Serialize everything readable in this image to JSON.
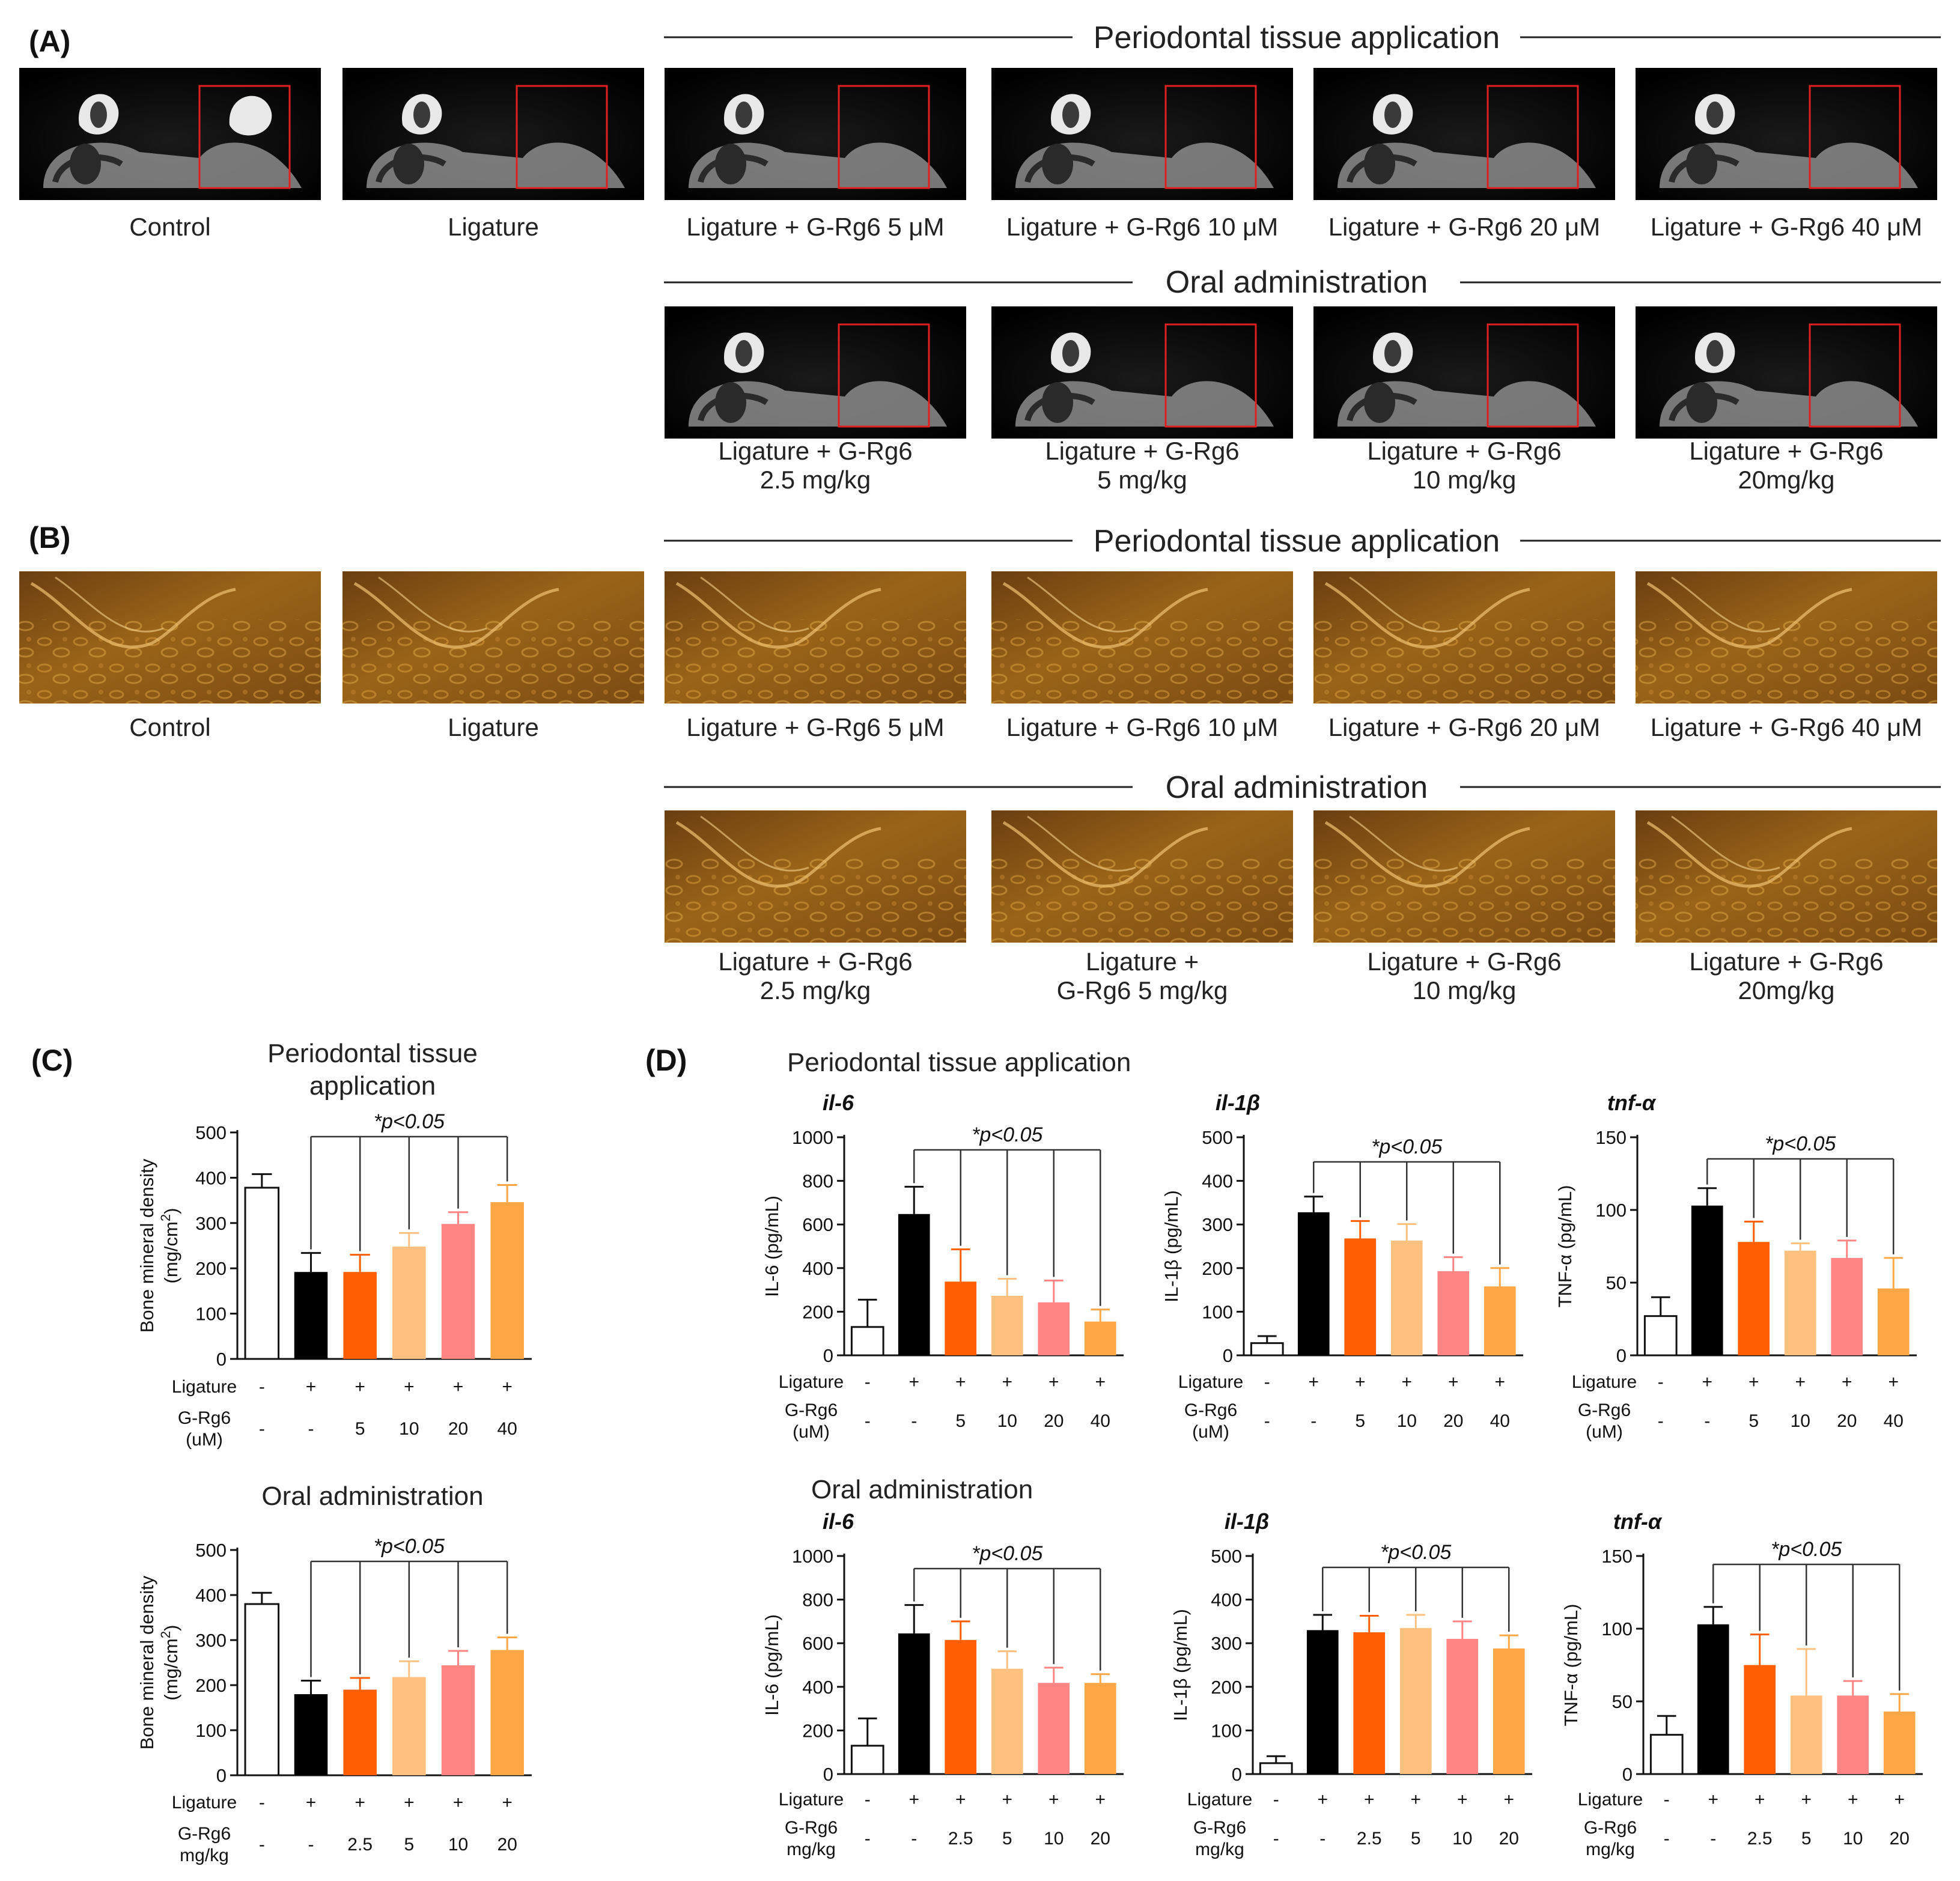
{
  "panels": {
    "A": {
      "label": "(A)",
      "section_topical": "Periodontal tissue application",
      "section_oral": "Oral administration",
      "row1_captions": [
        [
          "Control"
        ],
        [
          "Ligature"
        ],
        [
          "Ligature + G-Rg6 5 μM"
        ],
        [
          "Ligature + G-Rg6 10 μM"
        ],
        [
          "Ligature + G-Rg6 20 μM"
        ],
        [
          "Ligature + G-Rg6 40 μM"
        ]
      ],
      "row2_captions": [
        [
          "Ligature + G-Rg6",
          "2.5 mg/kg"
        ],
        [
          "Ligature + G-Rg6",
          "5 mg/kg"
        ],
        [
          "Ligature + G-Rg6",
          "10 mg/kg"
        ],
        [
          "Ligature + G-Rg6",
          "20mg/kg"
        ]
      ]
    },
    "B": {
      "label": "(B)",
      "section_topical": "Periodontal tissue application",
      "section_oral": "Oral administration",
      "row1_captions": [
        [
          "Control"
        ],
        [
          "Ligature"
        ],
        [
          "Ligature + G-Rg6 5 μM"
        ],
        [
          "Ligature + G-Rg6 10 μM"
        ],
        [
          "Ligature + G-Rg6 20 μM"
        ],
        [
          "Ligature + G-Rg6 40 μM"
        ]
      ],
      "row2_captions": [
        [
          "Ligature + G-Rg6",
          "2.5 mg/kg"
        ],
        [
          "Ligature +",
          "G-Rg6 5 mg/kg"
        ],
        [
          "Ligature + G-Rg6",
          "10 mg/kg"
        ],
        [
          "Ligature + G-Rg6",
          "20mg/kg"
        ]
      ]
    },
    "C": {
      "label": "(C)"
    },
    "D": {
      "label": "(D)",
      "section_topical": "Periodontal tissue application",
      "section_oral": "Oral administration"
    }
  },
  "colors": [
    "#ffffff",
    "#000000",
    "#ff5f00",
    "#ffc080",
    "#ff8484",
    "#ffa646"
  ],
  "chart_data": [
    {
      "id": "C-topical",
      "type": "bar",
      "title": [
        "Periodontal tissue",
        "application"
      ],
      "ylabel": "Bone mineral density",
      "ylabel2": "(mg/cm",
      "ylabel_sup": "2",
      "ylabel_end": ")",
      "ylim": [
        0,
        500
      ],
      "yticks": [
        "0",
        "100",
        "200",
        "300",
        "400",
        "500"
      ],
      "values": [
        378,
        192,
        192,
        248,
        298,
        346
      ],
      "errors": [
        30,
        42,
        38,
        30,
        26,
        38
      ],
      "significance": "*p<0.05",
      "rows": [
        {
          "label": [
            "Ligature"
          ],
          "values": [
            "-",
            "+",
            "+",
            "+",
            "+",
            "+"
          ]
        },
        {
          "label": [
            "G-Rg6",
            "(uM)"
          ],
          "values": [
            "-",
            "-",
            "5",
            "10",
            "20",
            "40"
          ]
        }
      ]
    },
    {
      "id": "C-oral",
      "type": "bar",
      "title": [
        "Oral administration"
      ],
      "ylabel": "Bone mineral density",
      "ylabel2": "(mg/cm",
      "ylabel_sup": "2",
      "ylabel_end": ")",
      "ylim": [
        0,
        500
      ],
      "yticks": [
        "0",
        "100",
        "200",
        "300",
        "400",
        "500"
      ],
      "values": [
        380,
        180,
        190,
        218,
        244,
        278
      ],
      "errors": [
        25,
        30,
        26,
        35,
        32,
        28
      ],
      "significance": "*p<0.05",
      "rows": [
        {
          "label": [
            "Ligature"
          ],
          "values": [
            "-",
            "+",
            "+",
            "+",
            "+",
            "+"
          ]
        },
        {
          "label": [
            "G-Rg6",
            "mg/kg"
          ],
          "values": [
            "-",
            "-",
            "2.5",
            "5",
            "10",
            "20"
          ]
        }
      ]
    },
    {
      "id": "D-topical-il6",
      "type": "bar",
      "gene": "il-6",
      "ylabel": "IL-6 (pg/mL)",
      "ylim": [
        0,
        1000
      ],
      "yticks": [
        "0",
        "200",
        "400",
        "600",
        "800",
        "1000"
      ],
      "values": [
        130,
        648,
        338,
        273,
        243,
        155
      ],
      "errors": [
        125,
        125,
        148,
        78,
        100,
        55
      ],
      "significance": "*p<0.05",
      "rows": [
        {
          "label": [
            "Ligature"
          ],
          "values": [
            "-",
            "+",
            "+",
            "+",
            "+",
            "+"
          ]
        },
        {
          "label": [
            "G-Rg6",
            "(uM)"
          ],
          "values": [
            "-",
            "-",
            "5",
            "10",
            "20",
            "40"
          ]
        }
      ]
    },
    {
      "id": "D-topical-il1b",
      "type": "bar",
      "gene": "il-1β",
      "ylabel": "IL-1β (pg/mL)",
      "ylim": [
        0,
        500
      ],
      "yticks": [
        "0",
        "100",
        "200",
        "300",
        "400",
        "500"
      ],
      "values": [
        28,
        328,
        268,
        263,
        193,
        158
      ],
      "errors": [
        16,
        36,
        40,
        38,
        32,
        42
      ],
      "significance": "*p<0.05",
      "rows": [
        {
          "label": [
            "Ligature"
          ],
          "values": [
            "-",
            "+",
            "+",
            "+",
            "+",
            "+"
          ]
        },
        {
          "label": [
            "G-Rg6",
            "(uM)"
          ],
          "values": [
            "-",
            "-",
            "5",
            "10",
            "20",
            "40"
          ]
        }
      ]
    },
    {
      "id": "D-topical-tnfa",
      "type": "bar",
      "gene": "tnf-α",
      "ylabel": "TNF-α (pg/mL)",
      "ylim": [
        0,
        150
      ],
      "yticks": [
        "0",
        "50",
        "100",
        "150"
      ],
      "values": [
        27,
        103,
        78,
        72,
        67,
        46
      ],
      "errors": [
        13,
        12,
        14,
        5,
        12,
        21
      ],
      "significance": "*p<0.05",
      "rows": [
        {
          "label": [
            "Ligature"
          ],
          "values": [
            "-",
            "+",
            "+",
            "+",
            "+",
            "+"
          ]
        },
        {
          "label": [
            "G-Rg6",
            "(uM)"
          ],
          "values": [
            "-",
            "-",
            "5",
            "10",
            "20",
            "40"
          ]
        }
      ]
    },
    {
      "id": "D-oral-il6",
      "type": "bar",
      "gene": "il-6",
      "ylabel": "IL-6 (pg/mL)",
      "ylim": [
        0,
        1000
      ],
      "yticks": [
        "0",
        "200",
        "400",
        "600",
        "800",
        "1000"
      ],
      "values": [
        130,
        645,
        615,
        483,
        418,
        418
      ],
      "errors": [
        125,
        130,
        85,
        80,
        70,
        40
      ],
      "significance": "*p<0.05",
      "rows": [
        {
          "label": [
            "Ligature"
          ],
          "values": [
            "-",
            "+",
            "+",
            "+",
            "+",
            "+"
          ]
        },
        {
          "label": [
            "G-Rg6",
            "mg/kg"
          ],
          "values": [
            "-",
            "-",
            "2.5",
            "5",
            "10",
            "20"
          ]
        }
      ]
    },
    {
      "id": "D-oral-il1b",
      "type": "bar",
      "gene": "il-1β",
      "ylabel": "IL-1β (pg/mL)",
      "ylim": [
        0,
        500
      ],
      "yticks": [
        "0",
        "100",
        "200",
        "300",
        "400",
        "500"
      ],
      "values": [
        25,
        330,
        325,
        335,
        310,
        288
      ],
      "errors": [
        16,
        35,
        38,
        30,
        40,
        30
      ],
      "significance": "*p<0.05",
      "rows": [
        {
          "label": [
            "Ligature"
          ],
          "values": [
            "-",
            "+",
            "+",
            "+",
            "+",
            "+"
          ]
        },
        {
          "label": [
            "G-Rg6",
            "mg/kg"
          ],
          "values": [
            "-",
            "-",
            "2.5",
            "5",
            "10",
            "20"
          ]
        }
      ]
    },
    {
      "id": "D-oral-tnfa",
      "type": "bar",
      "gene": "tnf-α",
      "ylabel": "TNF-α (pg/mL)",
      "ylim": [
        0,
        150
      ],
      "yticks": [
        "0",
        "50",
        "100",
        "150"
      ],
      "values": [
        27,
        103,
        75,
        54,
        54,
        43
      ],
      "errors": [
        13,
        12,
        21,
        32,
        10,
        12
      ],
      "significance": "*p<0.05",
      "rows": [
        {
          "label": [
            "Ligature"
          ],
          "values": [
            "-",
            "+",
            "+",
            "+",
            "+",
            "+"
          ]
        },
        {
          "label": [
            "G-Rg6",
            "mg/kg"
          ],
          "values": [
            "-",
            "-",
            "2.5",
            "5",
            "10",
            "20"
          ]
        }
      ]
    }
  ]
}
